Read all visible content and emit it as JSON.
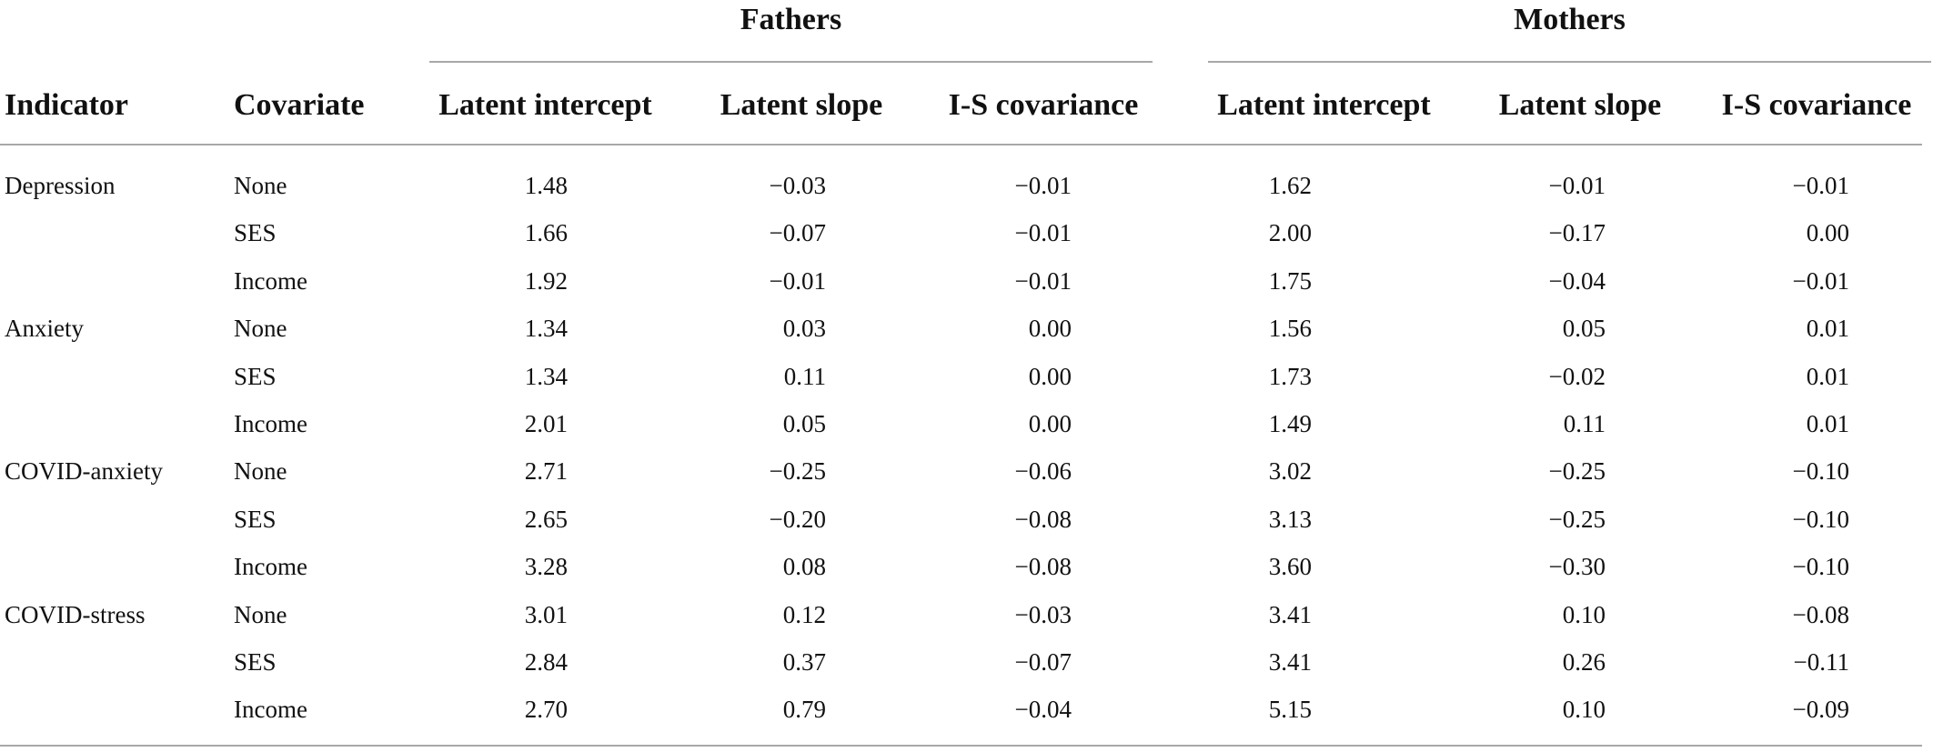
{
  "groups": {
    "fathers": "Fathers",
    "mothers": "Mothers"
  },
  "columns": {
    "indicator": "Indicator",
    "covariate": "Covariate",
    "fathers_intercept": "Latent intercept",
    "fathers_slope": "Latent slope",
    "fathers_covariance": "I-S covariance",
    "mothers_intercept": "Latent intercept",
    "mothers_slope": "Latent slope",
    "mothers_covariance": "I-S covariance"
  },
  "rows": [
    {
      "indicator": "Depression",
      "covariate": "None",
      "f_int": "1.48",
      "f_slo": "−0.03",
      "f_cov": "−0.01",
      "m_int": "1.62",
      "m_slo": "−0.01",
      "m_cov": "−0.01"
    },
    {
      "indicator": "",
      "covariate": "SES",
      "f_int": "1.66",
      "f_slo": "−0.07",
      "f_cov": "−0.01",
      "m_int": "2.00",
      "m_slo": "−0.17",
      "m_cov": "0.00"
    },
    {
      "indicator": "",
      "covariate": "Income",
      "f_int": "1.92",
      "f_slo": "−0.01",
      "f_cov": "−0.01",
      "m_int": "1.75",
      "m_slo": "−0.04",
      "m_cov": "−0.01"
    },
    {
      "indicator": "Anxiety",
      "covariate": "None",
      "f_int": "1.34",
      "f_slo": "0.03",
      "f_cov": "0.00",
      "m_int": "1.56",
      "m_slo": "0.05",
      "m_cov": "0.01"
    },
    {
      "indicator": "",
      "covariate": "SES",
      "f_int": "1.34",
      "f_slo": "0.11",
      "f_cov": "0.00",
      "m_int": "1.73",
      "m_slo": "−0.02",
      "m_cov": "0.01"
    },
    {
      "indicator": "",
      "covariate": "Income",
      "f_int": "2.01",
      "f_slo": "0.05",
      "f_cov": "0.00",
      "m_int": "1.49",
      "m_slo": "0.11",
      "m_cov": "0.01"
    },
    {
      "indicator": "COVID-anxiety",
      "covariate": "None",
      "f_int": "2.71",
      "f_slo": "−0.25",
      "f_cov": "−0.06",
      "m_int": "3.02",
      "m_slo": "−0.25",
      "m_cov": "−0.10"
    },
    {
      "indicator": "",
      "covariate": "SES",
      "f_int": "2.65",
      "f_slo": "−0.20",
      "f_cov": "−0.08",
      "m_int": "3.13",
      "m_slo": "−0.25",
      "m_cov": "−0.10"
    },
    {
      "indicator": "",
      "covariate": "Income",
      "f_int": "3.28",
      "f_slo": "0.08",
      "f_cov": "−0.08",
      "m_int": "3.60",
      "m_slo": "−0.30",
      "m_cov": "−0.10"
    },
    {
      "indicator": "COVID-stress",
      "covariate": "None",
      "f_int": "3.01",
      "f_slo": "0.12",
      "f_cov": "−0.03",
      "m_int": "3.41",
      "m_slo": "0.10",
      "m_cov": "−0.08"
    },
    {
      "indicator": "",
      "covariate": "SES",
      "f_int": "2.84",
      "f_slo": "0.37",
      "f_cov": "−0.07",
      "m_int": "3.41",
      "m_slo": "0.26",
      "m_cov": "−0.11"
    },
    {
      "indicator": "",
      "covariate": "Income",
      "f_int": "2.70",
      "f_slo": "0.79",
      "f_cov": "−0.04",
      "m_int": "5.15",
      "m_slo": "0.10",
      "m_cov": "−0.09"
    }
  ]
}
